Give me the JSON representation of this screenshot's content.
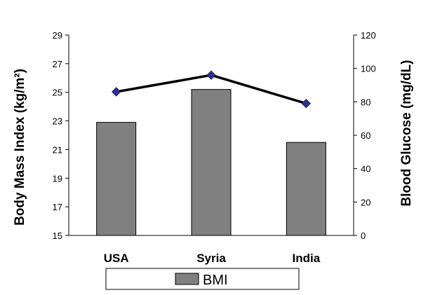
{
  "chart_data": {
    "type": "bar",
    "categories": [
      "USA",
      "Syria",
      "India"
    ],
    "series": [
      {
        "name": "BMI",
        "type": "bar",
        "axis": "left",
        "values": [
          22.9,
          25.2,
          21.5
        ],
        "color": "#808080"
      },
      {
        "type": "line",
        "axis": "right",
        "values": [
          86,
          96,
          79
        ],
        "color": "#000000",
        "marker_color": "#2E3192"
      }
    ],
    "left_axis": {
      "label": "Body Mass Index (kg/m²)",
      "min": 15,
      "max": 29,
      "ticks": [
        15,
        17,
        19,
        21,
        23,
        25,
        27,
        29
      ]
    },
    "right_axis": {
      "label": "Blood Glucose (mg/dL)",
      "min": 0,
      "max": 120,
      "ticks": [
        0,
        20,
        40,
        60,
        80,
        100,
        120
      ]
    },
    "legend": {
      "placement": "bottom",
      "label": "BMI"
    },
    "grid": false
  }
}
